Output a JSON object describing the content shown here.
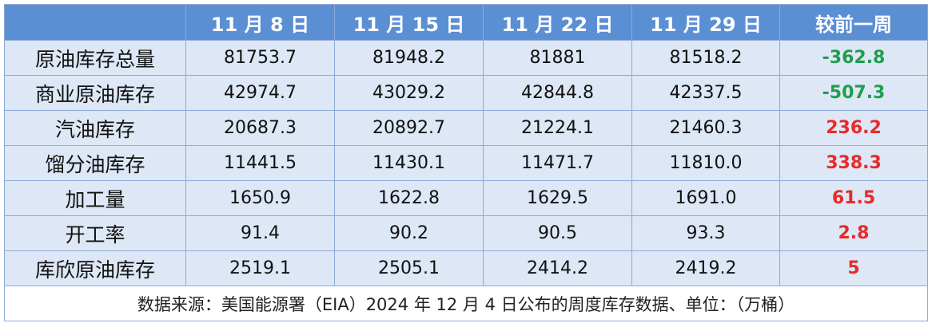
{
  "table": {
    "header": [
      "11 月 8 日",
      "11 月 15 日",
      "11 月 22 日",
      "11 月 29 日",
      "较前一周"
    ],
    "rows": [
      [
        "原油库存总量",
        "81753.7",
        "81948.2",
        "81881",
        "81518.2",
        "-362.8"
      ],
      [
        "商业原油库存",
        "42974.7",
        "43029.2",
        "42844.8",
        "42337.5",
        "-507.3"
      ],
      [
        "汽油库存",
        "20687.3",
        "20892.7",
        "21224.1",
        "21460.3",
        "236.2"
      ],
      [
        "馏分油库存",
        "11441.5",
        "11430.1",
        "11471.7",
        "11810.0",
        "338.3"
      ],
      [
        "加工量",
        "1650.9",
        "1622.8",
        "1629.5",
        "1691.0",
        "61.5"
      ],
      [
        "开工率",
        "91.4",
        "90.2",
        "90.5",
        "93.3",
        "2.8"
      ],
      [
        "库欣原油库存",
        "2519.1",
        "2505.1",
        "2414.2",
        "2419.2",
        "5"
      ]
    ],
    "note": "数据来源：美国能源署（EIA）2024 年 12 月 4 日公布的周度库存数据、单位：（万桶）",
    "change_colors": {
      "negative": "#1f9e4a",
      "positive": "#e82a2a"
    }
  }
}
